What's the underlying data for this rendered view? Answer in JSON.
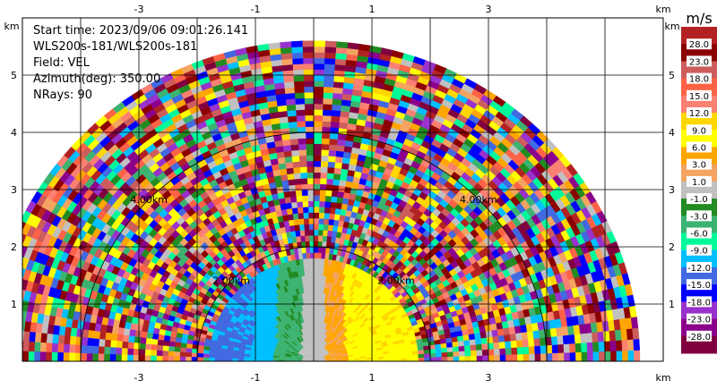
{
  "chart_data": {
    "type": "heatmap",
    "subtype": "radar-ppi-sector",
    "info_lines": [
      "Start time: 2023/09/06 09:01:26.141",
      "WLS200s-181/WLS200s-181",
      "Field: VEL",
      "Azimuth(deg): 350.00",
      "NRays: 90"
    ],
    "x_unit": "km",
    "y_unit": "km",
    "xlim": [
      -5,
      6
    ],
    "ylim": [
      0,
      6
    ],
    "x_ticks": [
      "-3",
      "-1",
      "1",
      "3"
    ],
    "y_ticks": [
      "1",
      "2",
      "3",
      "4",
      "5"
    ],
    "range_rings": [
      {
        "range_km": 2,
        "label": "2.00km"
      },
      {
        "range_km": 4,
        "label": "4.00km"
      }
    ],
    "max_range_km": 5.6,
    "colorbar": {
      "unit": "m/s",
      "levels": [
        "28.0",
        "23.0",
        "18.0",
        "15.0",
        "12.0",
        "9.0",
        "6.0",
        "3.0",
        "1.0",
        "-1.0",
        "-3.0",
        "-6.0",
        "-9.0",
        "-12.0",
        "-15.0",
        "-18.0",
        "-23.0",
        "-28.0"
      ],
      "colors": [
        "#b22222",
        "#8b0000",
        "#cd5c5c",
        "#ff6347",
        "#fa8072",
        "#ffd700",
        "#ffff00",
        "#ffa500",
        "#f4a460",
        "#c0c0c0",
        "#228b22",
        "#3cb371",
        "#00fa9a",
        "#00bfff",
        "#4169e1",
        "#0000ff",
        "#9932cc",
        "#8b008b",
        "#800040"
      ]
    },
    "near_field": {
      "approaching_region": {
        "value_range": "-12 to -3 m/s",
        "side": "west"
      },
      "receding_region": {
        "value_range": "1 to 9 m/s",
        "side": "east"
      }
    }
  }
}
